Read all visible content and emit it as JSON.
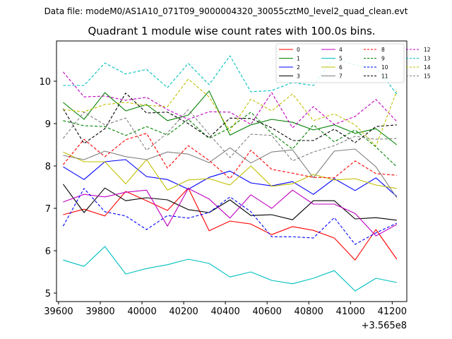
{
  "header": {
    "suptitle": "Data file: modeM0/AS1A10_071T09_9000004320_30055cztM0_level2_quad_clean.evt"
  },
  "chart_data": {
    "type": "line",
    "title": "Quadrant 1 module wise count rates with 100.0s bins.",
    "xlabel": "",
    "ylabel": "",
    "x_offset_label": "+3.565e8",
    "xlim": [
      39590,
      41270
    ],
    "ylim": [
      4.8,
      10.95
    ],
    "xticks": [
      39600,
      39800,
      40000,
      40200,
      40400,
      40600,
      40800,
      41000,
      41200
    ],
    "yticks": [
      5,
      6,
      7,
      8,
      9,
      10
    ],
    "grid": false,
    "legend_position": "top-right",
    "x": [
      39622,
      39722,
      39822,
      39922,
      40022,
      40122,
      40222,
      40322,
      40422,
      40522,
      40622,
      40722,
      40822,
      40922,
      41022,
      41122,
      41222
    ],
    "series": [
      {
        "name": "0",
        "color": "#ff0000",
        "style": "solid",
        "values": [
          6.85,
          6.98,
          6.82,
          7.4,
          7.18,
          6.95,
          7.48,
          6.47,
          6.7,
          6.63,
          6.38,
          6.57,
          6.48,
          6.3,
          5.78,
          6.5,
          5.8
        ]
      },
      {
        "name": "1",
        "color": "#008000",
        "style": "solid",
        "values": [
          9.5,
          9.1,
          9.73,
          9.3,
          9.45,
          9.07,
          9.2,
          9.77,
          8.73,
          8.97,
          9.1,
          9.03,
          8.85,
          8.97,
          8.77,
          8.88,
          8.5
        ]
      },
      {
        "name": "2",
        "color": "#0000ff",
        "style": "solid",
        "values": [
          7.98,
          7.68,
          8.1,
          8.15,
          7.75,
          7.68,
          7.45,
          7.73,
          7.88,
          7.6,
          7.53,
          7.63,
          7.33,
          7.7,
          7.42,
          7.72,
          7.28
        ]
      },
      {
        "name": "3",
        "color": "#000000",
        "style": "solid",
        "values": [
          7.57,
          6.9,
          7.48,
          7.18,
          7.25,
          7.2,
          6.97,
          6.9,
          7.2,
          6.83,
          6.85,
          6.73,
          7.18,
          7.18,
          6.75,
          6.78,
          6.72
        ]
      },
      {
        "name": "4",
        "color": "#c000c0",
        "style": "solid",
        "values": [
          7.15,
          7.33,
          7.27,
          7.38,
          7.43,
          6.58,
          7.47,
          7.22,
          6.77,
          7.32,
          7.0,
          7.43,
          7.1,
          7.1,
          6.88,
          6.35,
          6.62
        ]
      },
      {
        "name": "5",
        "color": "#00bfbf",
        "style": "solid",
        "values": [
          5.78,
          5.63,
          6.1,
          5.45,
          5.58,
          5.67,
          5.8,
          5.7,
          5.38,
          5.5,
          5.3,
          5.22,
          5.35,
          5.53,
          5.05,
          5.35,
          5.25
        ]
      },
      {
        "name": "6",
        "color": "#bfbf00",
        "style": "solid",
        "values": [
          8.33,
          8.1,
          8.1,
          7.58,
          8.15,
          7.43,
          7.67,
          7.7,
          7.55,
          8.0,
          7.52,
          7.58,
          7.8,
          7.67,
          7.7,
          7.55,
          7.47
        ]
      },
      {
        "name": "7",
        "color": "#808080",
        "style": "solid",
        "values": [
          8.25,
          8.15,
          8.35,
          8.22,
          8.15,
          8.33,
          8.28,
          8.08,
          8.43,
          8.07,
          8.33,
          8.38,
          7.72,
          8.35,
          8.4,
          7.98,
          7.25
        ]
      },
      {
        "name": "8",
        "color": "#ff0000",
        "style": "dashed",
        "values": [
          8.03,
          8.63,
          8.22,
          8.62,
          8.77,
          7.95,
          8.48,
          8.13,
          7.7,
          8.37,
          7.92,
          7.83,
          7.73,
          7.72,
          8.12,
          7.82,
          7.78
        ]
      },
      {
        "name": "9",
        "color": "#008000",
        "style": "dashed",
        "values": [
          9.07,
          8.95,
          8.93,
          8.72,
          8.93,
          8.73,
          9.1,
          8.65,
          8.9,
          9.27,
          8.77,
          8.4,
          8.97,
          8.57,
          8.85,
          8.45,
          7.98
        ]
      },
      {
        "name": "10",
        "color": "#0000ff",
        "style": "dashed",
        "values": [
          6.58,
          7.47,
          6.92,
          6.82,
          6.5,
          6.83,
          6.77,
          6.9,
          7.27,
          6.92,
          6.33,
          6.33,
          6.3,
          6.78,
          6.15,
          6.42,
          6.65
        ]
      },
      {
        "name": "11",
        "color": "#000000",
        "style": "dashed",
        "values": [
          9.35,
          8.53,
          8.88,
          9.72,
          9.25,
          9.27,
          9.0,
          8.67,
          9.13,
          9.12,
          8.9,
          8.6,
          8.6,
          8.87,
          8.55,
          8.93,
          8.97
        ]
      },
      {
        "name": "12",
        "color": "#c000c0",
        "style": "dashed",
        "values": [
          10.22,
          9.63,
          9.65,
          9.55,
          9.62,
          9.33,
          9.1,
          9.28,
          9.27,
          8.98,
          9.73,
          8.9,
          9.4,
          8.98,
          9.17,
          9.57,
          9.05
        ]
      },
      {
        "name": "13",
        "color": "#00bfbf",
        "style": "dashed",
        "values": [
          9.9,
          9.9,
          10.43,
          10.17,
          10.28,
          9.85,
          10.42,
          9.92,
          10.6,
          9.75,
          9.78,
          9.97,
          9.9,
          10.55,
          10.38,
          10.33,
          9.7
        ]
      },
      {
        "name": "14",
        "color": "#bfbf00",
        "style": "dashed",
        "values": [
          9.33,
          9.28,
          9.45,
          9.5,
          9.43,
          9.4,
          10.05,
          9.63,
          8.83,
          9.58,
          9.3,
          9.7,
          9.07,
          9.23,
          8.97,
          8.47,
          9.77
        ]
      },
      {
        "name": "15",
        "color": "#808080",
        "style": "dashed",
        "values": [
          8.65,
          9.27,
          8.97,
          9.13,
          8.37,
          8.78,
          9.33,
          8.75,
          8.2,
          8.75,
          8.72,
          8.12,
          8.33,
          8.48,
          8.7,
          8.63,
          8.65
        ]
      }
    ]
  }
}
